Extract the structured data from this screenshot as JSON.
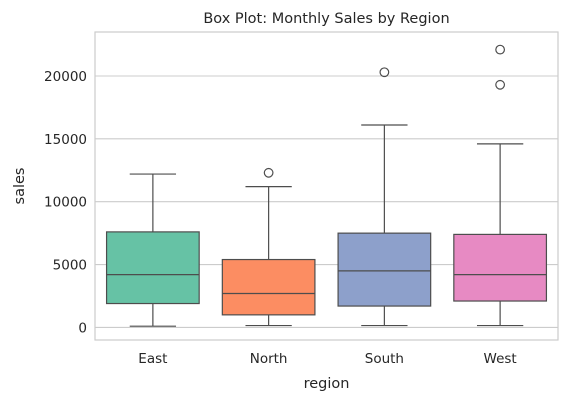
{
  "chart_data": {
    "type": "box",
    "title": "Box Plot: Monthly Sales by Region",
    "xlabel": "region",
    "ylabel": "sales",
    "ylim": [
      -1000,
      23500
    ],
    "yticks": [
      0,
      5000,
      10000,
      15000,
      20000
    ],
    "ytick_labels": [
      "0",
      "5000",
      "10000",
      "15000",
      "20000"
    ],
    "grid": true,
    "categories": [
      "East",
      "North",
      "South",
      "West"
    ],
    "boxes": [
      {
        "category": "East",
        "color": "#66c2a5",
        "whisker_low": 100,
        "q1": 1900,
        "median": 4200,
        "q3": 7600,
        "whisker_high": 12200,
        "outliers": []
      },
      {
        "category": "North",
        "color": "#fc8d62",
        "whisker_low": 150,
        "q1": 1000,
        "median": 2700,
        "q3": 5400,
        "whisker_high": 11200,
        "outliers": [
          12300
        ]
      },
      {
        "category": "South",
        "color": "#8da0cb",
        "whisker_low": 150,
        "q1": 1700,
        "median": 4500,
        "q3": 7500,
        "whisker_high": 16100,
        "outliers": [
          20300
        ]
      },
      {
        "category": "West",
        "color": "#e78ac3",
        "whisker_low": 150,
        "q1": 2100,
        "median": 4200,
        "q3": 7400,
        "whisker_high": 14600,
        "outliers": [
          19300,
          22100
        ]
      }
    ]
  }
}
